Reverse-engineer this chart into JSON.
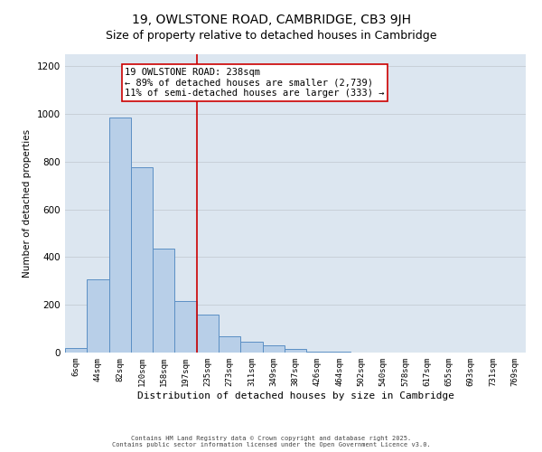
{
  "title": "19, OWLSTONE ROAD, CAMBRIDGE, CB3 9JH",
  "subtitle": "Size of property relative to detached houses in Cambridge",
  "xlabel": "Distribution of detached houses by size in Cambridge",
  "ylabel": "Number of detached properties",
  "bin_labels": [
    "6sqm",
    "44sqm",
    "82sqm",
    "120sqm",
    "158sqm",
    "197sqm",
    "235sqm",
    "273sqm",
    "311sqm",
    "349sqm",
    "387sqm",
    "426sqm",
    "464sqm",
    "502sqm",
    "540sqm",
    "578sqm",
    "617sqm",
    "655sqm",
    "693sqm",
    "731sqm",
    "769sqm"
  ],
  "bar_heights": [
    20,
    305,
    985,
    775,
    435,
    215,
    160,
    70,
    45,
    30,
    15,
    5,
    2,
    1,
    0,
    0,
    0,
    0,
    0,
    0,
    0
  ],
  "bar_color": "#b8cfe8",
  "bar_edge_color": "#5b8fc4",
  "vline_color": "#cc0000",
  "annotation_text": "19 OWLSTONE ROAD: 238sqm\n← 89% of detached houses are smaller (2,739)\n11% of semi-detached houses are larger (333) →",
  "annotation_box_color": "#ffffff",
  "annotation_box_edge_color": "#cc0000",
  "ylim": [
    0,
    1250
  ],
  "yticks": [
    0,
    200,
    400,
    600,
    800,
    1000,
    1200
  ],
  "grid_color": "#c8d0d8",
  "bg_color": "#dce6f0",
  "footer_line1": "Contains HM Land Registry data © Crown copyright and database right 2025.",
  "footer_line2": "Contains public sector information licensed under the Open Government Licence v3.0.",
  "title_fontsize": 10,
  "subtitle_fontsize": 9,
  "annotation_fontsize": 7.5,
  "ylabel_fontsize": 7.5,
  "xlabel_fontsize": 8,
  "ytick_fontsize": 7.5,
  "xtick_fontsize": 6.5
}
